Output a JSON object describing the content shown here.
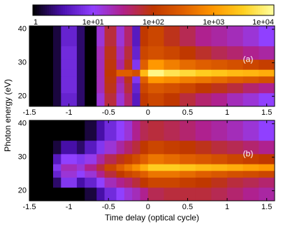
{
  "chart_data": [
    {
      "type": "colorbar",
      "log": true,
      "lim": [
        1,
        10000
      ],
      "ticks": [
        1,
        {
          "value": 10,
          "label": "1e+01"
        },
        {
          "value": 100,
          "label": "1e+02"
        },
        {
          "value": 1000,
          "label": "1e+03"
        },
        {
          "value": 10000,
          "label": "1e+04"
        }
      ],
      "colormap": [
        "#000000",
        "#4a10b0",
        "#9040ff",
        "#b0208a",
        "#c03800",
        "#e06000",
        "#ff9800",
        "#ffd020",
        "#ffffa0"
      ]
    },
    {
      "type": "heatmap",
      "annotation": "(a)",
      "ylabel": "Photon energy (eV)",
      "xlim": [
        -1.5,
        1.6
      ],
      "ylim": [
        17,
        41
      ],
      "xticks": [
        -1.5,
        -1,
        -0.5,
        0,
        0.5,
        1,
        1.5
      ],
      "yticks": [
        20,
        30,
        40
      ],
      "x_edges": [
        -1.5,
        -1.2,
        -1.1,
        -0.9,
        -0.8,
        -0.65,
        -0.55,
        -0.4,
        -0.3,
        -0.2,
        -0.1,
        0,
        0.2,
        0.4,
        0.6,
        0.8,
        1.0,
        1.2,
        1.4,
        1.6
      ],
      "y_edges": [
        17,
        21,
        24,
        26,
        28,
        31,
        35,
        41
      ],
      "z": [
        [
          1,
          1.5,
          5,
          2,
          1,
          15,
          60,
          15,
          40,
          4,
          100,
          150,
          100,
          60,
          40,
          30,
          20,
          15,
          10
        ],
        [
          1,
          1.5,
          6,
          2,
          1,
          20,
          80,
          20,
          60,
          5,
          150,
          250,
          200,
          150,
          100,
          80,
          60,
          40,
          30
        ],
        [
          1,
          1.5,
          6,
          2,
          1,
          20,
          90,
          25,
          80,
          8,
          300,
          1000,
          800,
          600,
          500,
          400,
          300,
          250,
          200
        ],
        [
          1,
          1.5,
          6,
          2,
          1,
          20,
          100,
          300,
          300,
          200,
          2000,
          8000,
          5000,
          4000,
          3000,
          2500,
          2000,
          1800,
          1500
        ],
        [
          1,
          1.5,
          6,
          2,
          1,
          20,
          90,
          25,
          80,
          8,
          300,
          1000,
          600,
          400,
          300,
          250,
          200,
          150,
          120
        ],
        [
          1,
          1.5,
          6,
          2,
          1,
          20,
          80,
          20,
          60,
          5,
          150,
          200,
          150,
          100,
          70,
          50,
          40,
          30,
          25
        ],
        [
          1,
          1.5,
          5,
          2,
          1,
          15,
          60,
          15,
          40,
          4,
          100,
          150,
          80,
          50,
          30,
          25,
          20,
          15,
          10
        ]
      ]
    },
    {
      "type": "heatmap",
      "annotation": "(b)",
      "xlabel": "Time delay (optical cycle)",
      "xlim": [
        -1.5,
        1.6
      ],
      "ylim": [
        17,
        41
      ],
      "xticks": [
        -1.5,
        -1,
        -0.5,
        0,
        0.5,
        1,
        1.5
      ],
      "yticks": [
        20,
        30,
        40
      ],
      "x_edges": [
        -1.5,
        -1.2,
        -1.1,
        -0.9,
        -0.8,
        -0.65,
        -0.55,
        -0.4,
        -0.3,
        -0.2,
        -0.1,
        0,
        0.2,
        0.4,
        0.6,
        0.8,
        1.0,
        1.2,
        1.4,
        1.6
      ],
      "y_edges": [
        17,
        21,
        24,
        26,
        28,
        31,
        35,
        41
      ],
      "z": [
        [
          1,
          1,
          1,
          1,
          1.5,
          3,
          6,
          10,
          15,
          20,
          30,
          50,
          60,
          60,
          60,
          50,
          40,
          30,
          25
        ],
        [
          1,
          2,
          8,
          3,
          5,
          10,
          20,
          30,
          40,
          60,
          100,
          150,
          150,
          120,
          100,
          80,
          60,
          50,
          40
        ],
        [
          1,
          5,
          15,
          10,
          15,
          30,
          60,
          100,
          150,
          200,
          300,
          500,
          500,
          400,
          300,
          250,
          200,
          180,
          150
        ],
        [
          1,
          8,
          20,
          15,
          30,
          60,
          150,
          300,
          500,
          800,
          1500,
          3000,
          3000,
          2500,
          2000,
          1800,
          1500,
          1200,
          1000
        ],
        [
          1,
          4,
          10,
          8,
          12,
          25,
          50,
          80,
          120,
          180,
          300,
          500,
          400,
          300,
          250,
          200,
          150,
          120,
          100
        ],
        [
          1,
          1.5,
          3,
          2,
          4,
          8,
          15,
          25,
          40,
          60,
          100,
          150,
          120,
          100,
          80,
          60,
          50,
          40,
          30
        ],
        [
          1,
          1,
          1,
          1,
          1.5,
          3,
          6,
          10,
          15,
          30,
          50,
          60,
          50,
          40,
          30,
          25,
          20,
          15,
          10
        ]
      ]
    }
  ]
}
